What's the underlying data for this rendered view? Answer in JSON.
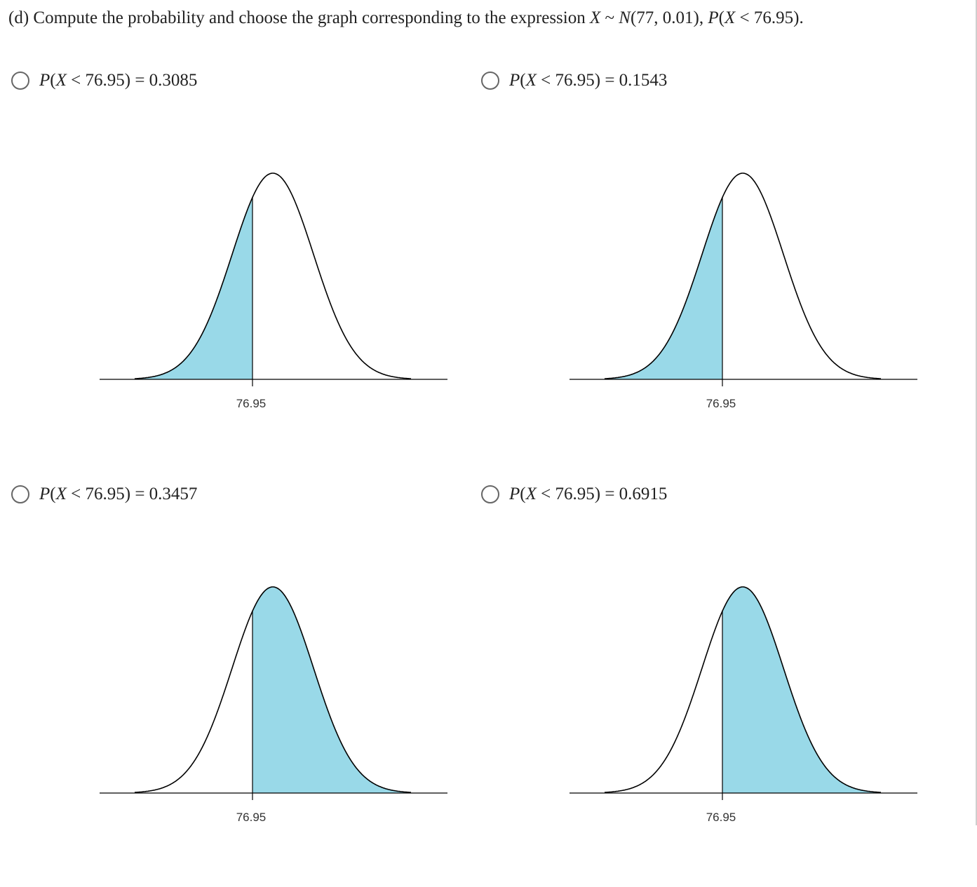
{
  "question": {
    "prefix": "(d) Compute the probability and choose the graph corresponding to the expression ",
    "var": "X",
    "sim": " ~ ",
    "dist_name": "N",
    "dist_params": "(77, 0.01)",
    "sep": ", ",
    "prob_fn": "P",
    "prob_open": "(",
    "prob_var": "X",
    "prob_rest": " < 76.95).",
    "mean": 77,
    "variance": 0.01,
    "threshold": 76.95
  },
  "options": [
    {
      "fn": "P",
      "open": "(",
      "var": "X",
      "rest": " < 76.95) = ",
      "value": "0.3085",
      "shade": "left",
      "tick_label": "76.95",
      "selected": false
    },
    {
      "fn": "P",
      "open": "(",
      "var": "X",
      "rest": " < 76.95) = ",
      "value": "0.1543",
      "shade": "left",
      "tick_label": "76.95",
      "selected": false
    },
    {
      "fn": "P",
      "open": "(",
      "var": "X",
      "rest": " < 76.95) = ",
      "value": "0.3457",
      "shade": "right",
      "tick_label": "76.95",
      "selected": false
    },
    {
      "fn": "P",
      "open": "(",
      "var": "X",
      "rest": " < 76.95) = ",
      "value": "0.6915",
      "shade": "right",
      "tick_label": "76.95",
      "selected": false
    }
  ],
  "chart_data": [
    {
      "type": "area",
      "distribution": "normal",
      "mean": 77,
      "sd": 0.1,
      "cutoff": 76.95,
      "shaded_region": "left",
      "tick_labels": [
        "76.95"
      ],
      "fill_color": "#99d9e8"
    },
    {
      "type": "area",
      "distribution": "normal",
      "mean": 77,
      "sd": 0.1,
      "cutoff": 76.95,
      "shaded_region": "left",
      "tick_labels": [
        "76.95"
      ],
      "fill_color": "#99d9e8"
    },
    {
      "type": "area",
      "distribution": "normal",
      "mean": 77,
      "sd": 0.1,
      "cutoff": 76.95,
      "shaded_region": "right",
      "tick_labels": [
        "76.95"
      ],
      "fill_color": "#99d9e8"
    },
    {
      "type": "area",
      "distribution": "normal",
      "mean": 77,
      "sd": 0.1,
      "cutoff": 76.95,
      "shaded_region": "right",
      "tick_labels": [
        "76.95"
      ],
      "fill_color": "#99d9e8"
    }
  ],
  "colors": {
    "fill": "#99d9e8",
    "curve": "#000000",
    "radio_border": "#666666"
  }
}
